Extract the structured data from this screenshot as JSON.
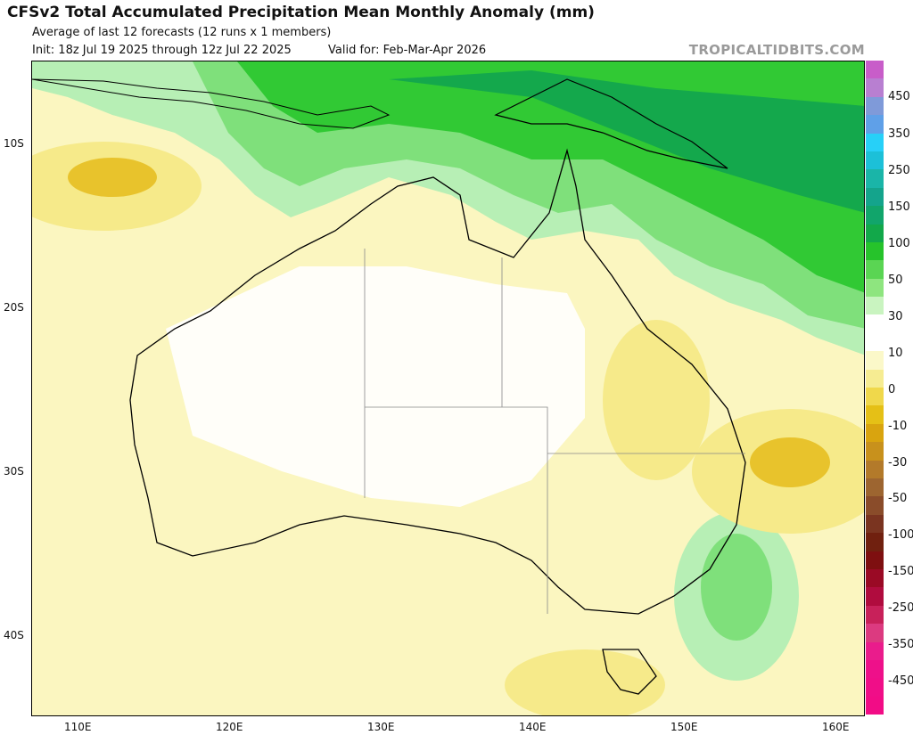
{
  "header": {
    "title": "CFSv2 Total Accumulated Precipitation Mean Monthly Anomaly (mm)",
    "subtitle": "Average of last 12 forecasts (12 runs x 1 members)",
    "init": "Init: 18z Jul 19 2025 through 12z Jul 22 2025",
    "valid": "Valid for: Feb-Mar-Apr 2026",
    "brand": "TROPICALTIDBITS.COM"
  },
  "map": {
    "lat_labels": [
      "10S",
      "20S",
      "30S",
      "40S"
    ],
    "lon_labels": [
      "110E",
      "120E",
      "130E",
      "140E",
      "150E",
      "160E"
    ],
    "colors": {
      "dry_light": "#fbf6c0",
      "dry_mid": "#f6ea8a",
      "dry_strong": "#e8c32c",
      "dry_vstrong": "#d4a414",
      "wet_light": "#b7efb5",
      "wet_mid": "#7fe07b",
      "wet_strong": "#31c934",
      "wet_vstrong": "#14a84c",
      "coast": "#000000",
      "border": "#888888"
    }
  },
  "legend": {
    "labels": [
      "450",
      "350",
      "250",
      "150",
      "100",
      "50",
      "30",
      "10",
      "0",
      "-10",
      "-30",
      "-50",
      "-100",
      "-150",
      "-250",
      "-350",
      "-450"
    ],
    "colors": [
      "#c85dc9",
      "#b87fd1",
      "#7f9ad9",
      "#5fa0e8",
      "#27d0f8",
      "#1cc0d8",
      "#1ab5a8",
      "#14a48c",
      "#11a56b",
      "#12a84a",
      "#26c32b",
      "#5ad553",
      "#8ee57f",
      "#c9f4c0",
      "#ffffff",
      "#ffffff",
      "#fbf8c9",
      "#f6ec92",
      "#f0d84b",
      "#e5c016",
      "#d9a40f",
      "#c8911c",
      "#b37a2a",
      "#9d6530",
      "#8a4c2a",
      "#7a3420",
      "#70200f",
      "#7e0f10",
      "#9a0a25",
      "#b00c3e",
      "#c8215a",
      "#dc3a80",
      "#ea1c8c",
      "#ee108a",
      "#f00e88",
      "#f20c86"
    ]
  }
}
